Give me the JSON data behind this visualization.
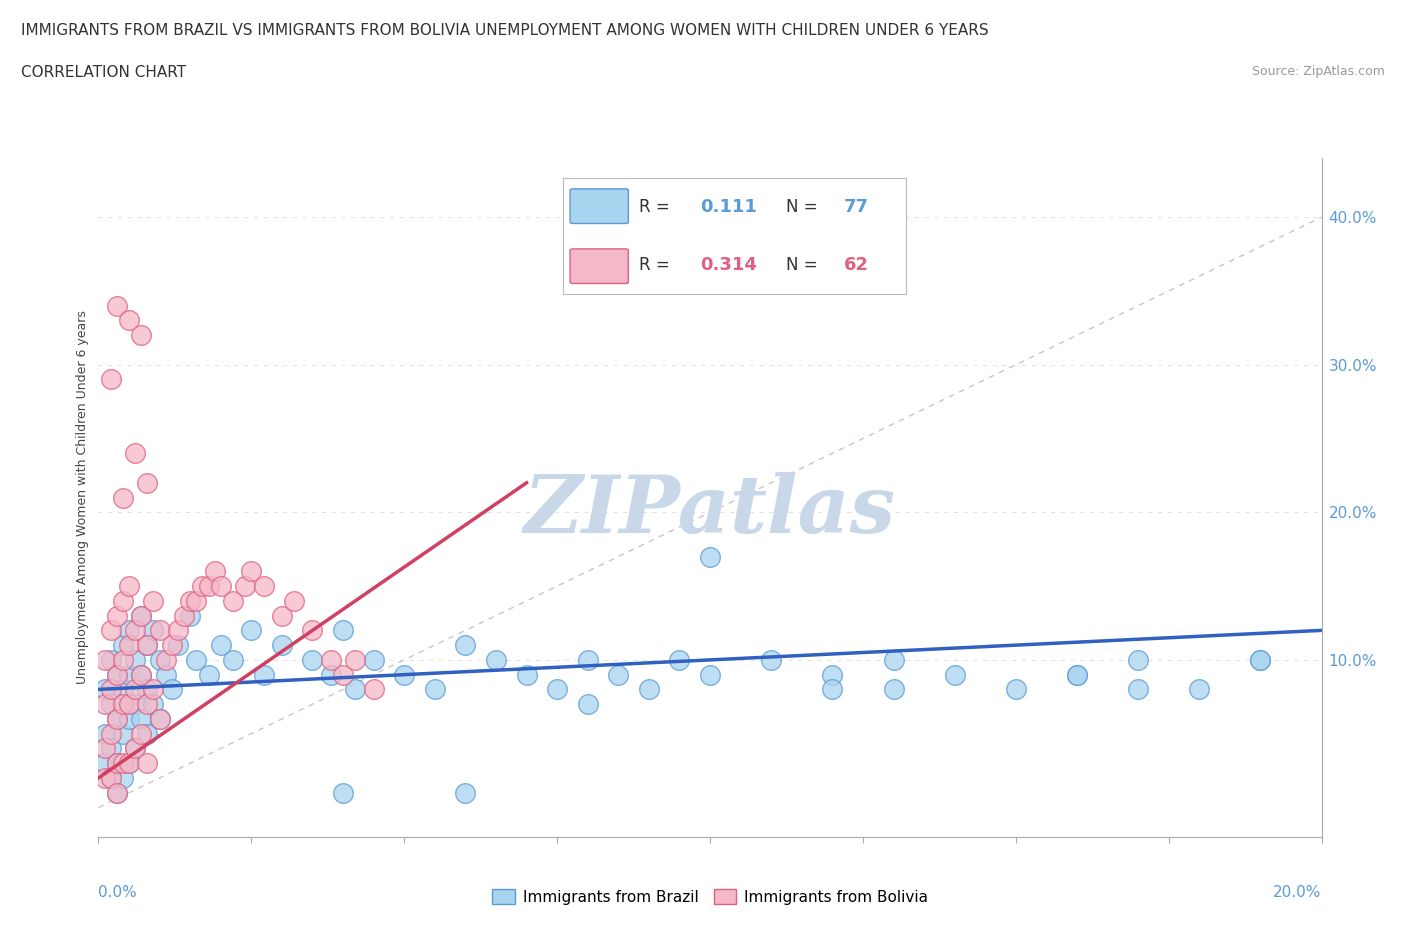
{
  "title_line1": "IMMIGRANTS FROM BRAZIL VS IMMIGRANTS FROM BOLIVIA UNEMPLOYMENT AMONG WOMEN WITH CHILDREN UNDER 6 YEARS",
  "title_line2": "CORRELATION CHART",
  "source": "Source: ZipAtlas.com",
  "ylabel": "Unemployment Among Women with Children Under 6 years",
  "ytick_values": [
    0.0,
    0.1,
    0.2,
    0.3,
    0.4
  ],
  "ytick_labels": [
    "",
    "10.0%",
    "20.0%",
    "30.0%",
    "40.0%"
  ],
  "xlim": [
    0.0,
    0.2
  ],
  "ylim": [
    -0.02,
    0.44
  ],
  "legend_brazil": "Immigrants from Brazil",
  "legend_bolivia": "Immigrants from Bolivia",
  "R_brazil": "0.111",
  "N_brazil": "77",
  "R_bolivia": "0.314",
  "N_bolivia": "62",
  "color_brazil_fill": "#a8d4ef",
  "color_brazil_edge": "#5b9bd5",
  "color_bolivia_fill": "#f5b8c8",
  "color_bolivia_edge": "#e06080",
  "trend_brazil_color": "#3060c0",
  "trend_bolivia_color": "#d04060",
  "ref_line_color": "#d0c0c8",
  "watermark_color": "#c8d8e8",
  "background_color": "#ffffff",
  "grid_color": "#e0e0e0",
  "brazil_x": [
    0.001,
    0.001,
    0.001,
    0.002,
    0.002,
    0.002,
    0.002,
    0.003,
    0.003,
    0.003,
    0.003,
    0.004,
    0.004,
    0.004,
    0.004,
    0.005,
    0.005,
    0.005,
    0.005,
    0.006,
    0.006,
    0.006,
    0.007,
    0.007,
    0.007,
    0.008,
    0.008,
    0.008,
    0.009,
    0.009,
    0.01,
    0.01,
    0.011,
    0.012,
    0.013,
    0.015,
    0.016,
    0.018,
    0.02,
    0.022,
    0.025,
    0.027,
    0.03,
    0.035,
    0.038,
    0.04,
    0.042,
    0.045,
    0.05,
    0.055,
    0.06,
    0.065,
    0.07,
    0.075,
    0.08,
    0.085,
    0.09,
    0.095,
    0.1,
    0.11,
    0.12,
    0.13,
    0.14,
    0.15,
    0.16,
    0.17,
    0.18,
    0.19,
    0.1,
    0.12,
    0.06,
    0.04,
    0.13,
    0.08,
    0.16,
    0.19,
    0.17
  ],
  "brazil_y": [
    0.08,
    0.05,
    0.03,
    0.1,
    0.07,
    0.04,
    0.02,
    0.09,
    0.06,
    0.03,
    0.01,
    0.11,
    0.08,
    0.05,
    0.02,
    0.12,
    0.09,
    0.06,
    0.03,
    0.1,
    0.07,
    0.04,
    0.13,
    0.09,
    0.06,
    0.11,
    0.08,
    0.05,
    0.12,
    0.07,
    0.1,
    0.06,
    0.09,
    0.08,
    0.11,
    0.13,
    0.1,
    0.09,
    0.11,
    0.1,
    0.12,
    0.09,
    0.11,
    0.1,
    0.09,
    0.12,
    0.08,
    0.1,
    0.09,
    0.08,
    0.11,
    0.1,
    0.09,
    0.08,
    0.1,
    0.09,
    0.08,
    0.1,
    0.09,
    0.1,
    0.09,
    0.1,
    0.09,
    0.08,
    0.09,
    0.1,
    0.08,
    0.1,
    0.17,
    0.08,
    0.01,
    0.01,
    0.08,
    0.07,
    0.09,
    0.1,
    0.08
  ],
  "bolivia_x": [
    0.001,
    0.001,
    0.001,
    0.001,
    0.002,
    0.002,
    0.002,
    0.002,
    0.003,
    0.003,
    0.003,
    0.003,
    0.003,
    0.004,
    0.004,
    0.004,
    0.004,
    0.005,
    0.005,
    0.005,
    0.005,
    0.006,
    0.006,
    0.006,
    0.007,
    0.007,
    0.007,
    0.008,
    0.008,
    0.008,
    0.009,
    0.009,
    0.01,
    0.01,
    0.011,
    0.012,
    0.013,
    0.014,
    0.015,
    0.016,
    0.017,
    0.018,
    0.019,
    0.02,
    0.022,
    0.024,
    0.025,
    0.027,
    0.03,
    0.032,
    0.035,
    0.038,
    0.04,
    0.042,
    0.045,
    0.002,
    0.003,
    0.004,
    0.005,
    0.006,
    0.007,
    0.008
  ],
  "bolivia_y": [
    0.1,
    0.07,
    0.04,
    0.02,
    0.12,
    0.08,
    0.05,
    0.02,
    0.13,
    0.09,
    0.06,
    0.03,
    0.01,
    0.14,
    0.1,
    0.07,
    0.03,
    0.15,
    0.11,
    0.07,
    0.03,
    0.12,
    0.08,
    0.04,
    0.13,
    0.09,
    0.05,
    0.11,
    0.07,
    0.03,
    0.14,
    0.08,
    0.12,
    0.06,
    0.1,
    0.11,
    0.12,
    0.13,
    0.14,
    0.14,
    0.15,
    0.15,
    0.16,
    0.15,
    0.14,
    0.15,
    0.16,
    0.15,
    0.13,
    0.14,
    0.12,
    0.1,
    0.09,
    0.1,
    0.08,
    0.29,
    0.34,
    0.21,
    0.33,
    0.24,
    0.32,
    0.22
  ],
  "bolivia_trend_x": [
    0.0,
    0.07
  ],
  "bolivia_trend_y": [
    0.02,
    0.22
  ],
  "brazil_trend_x": [
    0.0,
    0.2
  ],
  "brazil_trend_y": [
    0.08,
    0.12
  ]
}
